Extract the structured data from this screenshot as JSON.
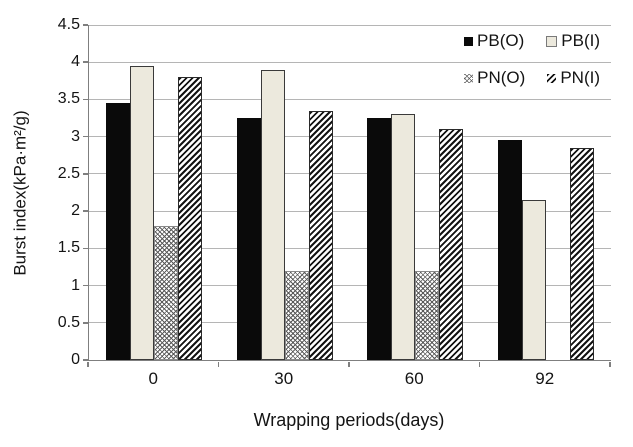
{
  "chart_data": {
    "type": "bar",
    "title": "",
    "xlabel": "Wrapping periods(days)",
    "ylabel": "Burst index(kPa·m²/g)",
    "categories": [
      "0",
      "30",
      "60",
      "92"
    ],
    "series": [
      {
        "name": "PB(O)",
        "style": "solid-black",
        "values": [
          3.45,
          3.25,
          3.25,
          2.95
        ]
      },
      {
        "name": "PB(I)",
        "style": "solid-cream",
        "values": [
          3.95,
          3.9,
          3.3,
          2.15
        ]
      },
      {
        "name": "PN(O)",
        "style": "dots",
        "values": [
          1.8,
          1.2,
          1.2,
          null
        ]
      },
      {
        "name": "PN(I)",
        "style": "hatch",
        "values": [
          3.8,
          3.35,
          3.1,
          2.85
        ]
      }
    ],
    "ylim": [
      0,
      4.5
    ],
    "ytick_step": 0.5,
    "ytick_labels": [
      "0",
      "0.5",
      "1",
      "1.5",
      "2",
      "2.5",
      "3",
      "3.5",
      "4",
      "4.5"
    ],
    "grid": "horizontal-gridlines",
    "legend_position": "top-right-inside",
    "legend_rows": [
      [
        "PB(O)",
        "PB(I)"
      ],
      [
        "PN(O)",
        "PN(I)"
      ]
    ]
  },
  "colors": {
    "bar_black": "#0a0a0a",
    "bar_cream": "#ece9dd",
    "pattern_ink": "#141414",
    "dots_ink": "#5a5a5a",
    "gridline": "#b5b5b5",
    "axis": "#7f7f7f",
    "text": "#141414",
    "background": "#ffffff"
  }
}
